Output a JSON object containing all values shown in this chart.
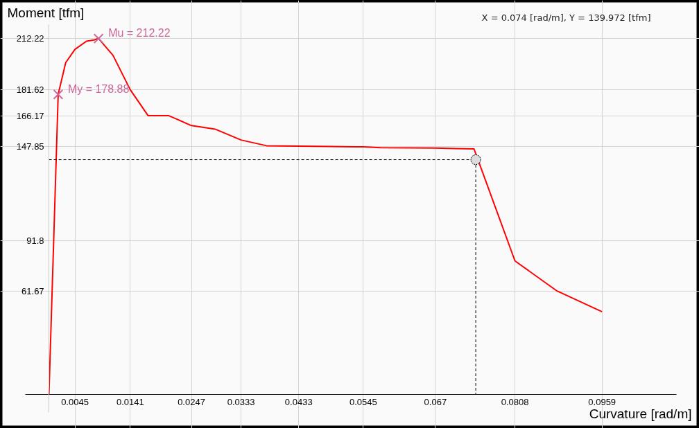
{
  "chart_data": {
    "type": "line",
    "xlabel": "Curvature [rad/m]",
    "ylabel": "Moment [tfm]",
    "annotations": [
      {
        "text": "My = 178.88",
        "x": 0.0016,
        "y": 178.88
      },
      {
        "text": "Mu = 212.22",
        "x": 0.0086,
        "y": 212.22
      },
      "X = 0.074 [rad/m], Y = 139.972 [tfm]"
    ],
    "xlim": [
      -0.0041,
      0.1088
    ],
    "ylim": [
      -10.7,
      220.5
    ],
    "xticks": [
      0.0045,
      0.0141,
      0.0247,
      0.0333,
      0.0433,
      0.0545,
      0.067,
      0.0808,
      0.0959
    ],
    "yticks": [
      61.67,
      91.8,
      147.85,
      166.17,
      181.62,
      212.22
    ],
    "grid": true,
    "series": [
      {
        "color": "#ff0000",
        "x": [
          0,
          0.0016,
          0.0029,
          0.0045,
          0.0065,
          0.0078,
          0.0086,
          0.0111,
          0.0141,
          0.0172,
          0.0208,
          0.0247,
          0.0288,
          0.0333,
          0.0377,
          0.0486,
          0.0545,
          0.0575,
          0.067,
          0.0703,
          0.0737,
          0.0808,
          0.0881,
          0.0959
        ],
        "values": [
          0,
          178.88,
          197.8,
          205.7,
          210.6,
          211.3,
          212.22,
          202.2,
          181.62,
          166.17,
          166.17,
          160.3,
          158.2,
          151.7,
          148.3,
          147.8,
          147.6,
          147.1,
          146.9,
          146.6,
          146.4,
          79.6,
          61.67,
          49.3
        ]
      },
      {
        "type": "scatter",
        "marker": "cross",
        "color": "#cc6699",
        "x": [
          0.0016,
          0.0086
        ],
        "values": [
          178.88,
          212.22
        ]
      },
      {
        "type": "line",
        "line_style": "dashed",
        "color": "#000000",
        "x": [
          0,
          0.074,
          0.074
        ],
        "values": [
          139.972,
          139.972,
          0
        ]
      },
      {
        "type": "scatter",
        "marker": "circle",
        "color": "#dddddd",
        "x": [
          0.074
        ],
        "values": [
          139.972
        ]
      }
    ]
  }
}
